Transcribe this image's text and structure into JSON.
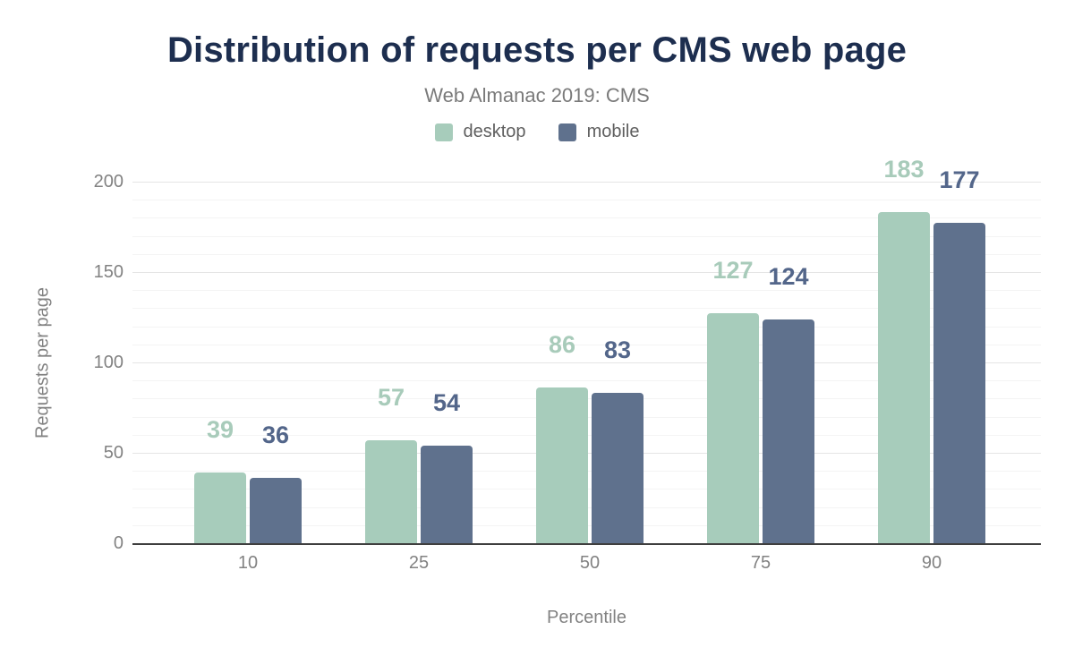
{
  "chart_data": {
    "type": "bar",
    "title": "Distribution of requests per CMS web page",
    "subtitle": "Web Almanac 2019: CMS",
    "xlabel": "Percentile",
    "ylabel": "Requests per page",
    "categories": [
      "10",
      "25",
      "50",
      "75",
      "90"
    ],
    "series": [
      {
        "name": "desktop",
        "color": "#a7ccbb",
        "label_color": "#a8cbba",
        "values": [
          39,
          57,
          86,
          127,
          183
        ]
      },
      {
        "name": "mobile",
        "color": "#5f718d",
        "label_color": "#53668a",
        "values": [
          36,
          54,
          83,
          124,
          177
        ]
      }
    ],
    "ylim": [
      0,
      200
    ],
    "yticks": [
      0,
      50,
      100,
      150,
      200
    ],
    "grid": {
      "minor_step": 10,
      "major_step": 50,
      "minor_color": "#f4f4f4",
      "major_color": "#e5e5e5"
    },
    "legend_position": "top"
  },
  "colors": {
    "title": "#1d2e4f",
    "subtitle": "#7a7a7a",
    "legend_text": "#5f5f5f",
    "axis_text": "#828282",
    "axis_line": "#3f3f3f",
    "background": "#ffffff"
  }
}
